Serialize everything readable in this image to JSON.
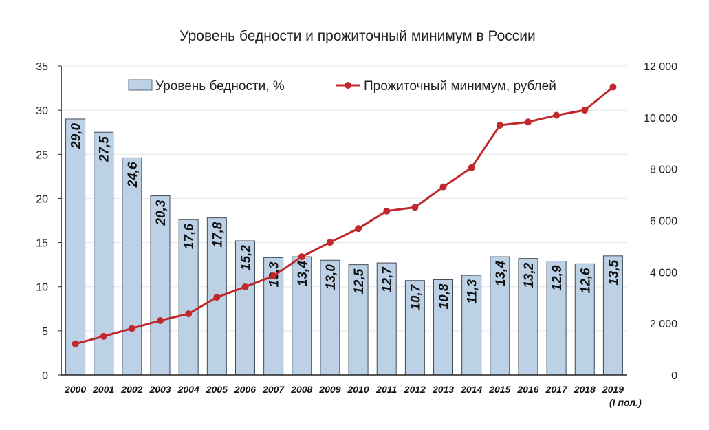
{
  "chart_data": {
    "type": "bar+line",
    "title": "Уровень бедности и прожиточный минимум в России",
    "categories": [
      "2000",
      "2001",
      "2002",
      "2003",
      "2004",
      "2005",
      "2006",
      "2007",
      "2008",
      "2009",
      "2010",
      "2011",
      "2012",
      "2013",
      "2014",
      "2015",
      "2016",
      "2017",
      "2018",
      "2019"
    ],
    "category_sublabel": "(I пол.)",
    "series": [
      {
        "name": "Уровень бедности, %",
        "type": "bar",
        "axis": "left",
        "color": "#bcd0e6",
        "values": [
          29.0,
          27.5,
          24.6,
          20.3,
          17.6,
          17.8,
          15.2,
          13.3,
          13.4,
          13.0,
          12.5,
          12.7,
          10.7,
          10.8,
          11.3,
          13.4,
          13.2,
          12.9,
          12.6,
          13.5
        ],
        "data_labels": [
          "29,0",
          "27,5",
          "24,6",
          "20,3",
          "17,6",
          "17,8",
          "15,2",
          "13,3",
          "13,4",
          "13,0",
          "12,5",
          "12,7",
          "10,7",
          "10,8",
          "11,3",
          "13,4",
          "13,2",
          "12,9",
          "12,6",
          "13,5"
        ]
      },
      {
        "name": "Прожиточный минимум, рублей",
        "type": "line",
        "axis": "right",
        "color": "#c0282d",
        "values": [
          1210,
          1500,
          1808,
          2112,
          2376,
          3018,
          3422,
          3847,
          4593,
          5153,
          5688,
          6369,
          6510,
          7306,
          8050,
          9701,
          9828,
          10088,
          10287,
          11185
        ]
      }
    ],
    "y_left": {
      "min": 0,
      "max": 35,
      "ticks": [
        "0",
        "5",
        "10",
        "15",
        "20",
        "25",
        "30",
        "35"
      ]
    },
    "y_right": {
      "min": 0,
      "max": 12000,
      "ticks": [
        "0",
        "2 000",
        "4 000",
        "6 000",
        "8 000",
        "10 000",
        "12 000"
      ]
    },
    "legend_placement": "top",
    "grid": true
  }
}
